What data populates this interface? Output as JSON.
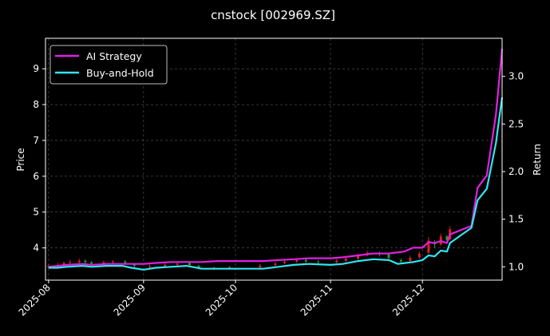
{
  "chart_data": {
    "type": "line",
    "title": "cnstock [002969.SZ]",
    "ylabel": "Price",
    "y2label": "Return",
    "grid": true,
    "legend": "top-left",
    "xlim": [
      "2025-07-31",
      "2025-12-27"
    ],
    "ylim": [
      3.1,
      9.85
    ],
    "y2lim": [
      0.86,
      3.4
    ],
    "x_ticks": [
      "2025-08",
      "2025-09",
      "2025-10",
      "2025-11",
      "2025-12"
    ],
    "y_ticks": [
      4,
      5,
      6,
      7,
      8,
      9
    ],
    "y2_ticks": [
      "1.0",
      "1.5",
      "2.0",
      "2.5",
      "3.0"
    ],
    "colors": {
      "background": "#000000",
      "ai_strategy": "#e020e0",
      "buy_and_hold": "#30e6f0",
      "candle_up": "#e02020",
      "candle_down": "#20a020",
      "grid": "#5a5a5a"
    },
    "series": [
      {
        "name": "AI Strategy",
        "axis": "return",
        "points": [
          [
            "2025-08-01",
            1.0
          ],
          [
            "2025-08-04",
            1.01
          ],
          [
            "2025-08-07",
            1.02
          ],
          [
            "2025-08-12",
            1.03
          ],
          [
            "2025-08-15",
            1.02
          ],
          [
            "2025-08-20",
            1.03
          ],
          [
            "2025-08-25",
            1.03
          ],
          [
            "2025-08-28",
            1.03
          ],
          [
            "2025-09-01",
            1.03
          ],
          [
            "2025-09-05",
            1.04
          ],
          [
            "2025-09-10",
            1.05
          ],
          [
            "2025-09-15",
            1.05
          ],
          [
            "2025-09-20",
            1.05
          ],
          [
            "2025-09-25",
            1.06
          ],
          [
            "2025-10-01",
            1.06
          ],
          [
            "2025-10-10",
            1.06
          ],
          [
            "2025-10-15",
            1.07
          ],
          [
            "2025-10-20",
            1.08
          ],
          [
            "2025-10-25",
            1.09
          ],
          [
            "2025-11-01",
            1.09
          ],
          [
            "2025-11-05",
            1.1
          ],
          [
            "2025-11-10",
            1.12
          ],
          [
            "2025-11-15",
            1.14
          ],
          [
            "2025-11-20",
            1.14
          ],
          [
            "2025-11-25",
            1.16
          ],
          [
            "2025-11-28",
            1.2
          ],
          [
            "2025-12-01",
            1.2
          ],
          [
            "2025-12-03",
            1.26
          ],
          [
            "2025-12-05",
            1.25
          ],
          [
            "2025-12-07",
            1.27
          ],
          [
            "2025-12-09",
            1.25
          ],
          [
            "2025-12-10",
            1.34
          ],
          [
            "2025-12-17",
            1.43
          ],
          [
            "2025-12-19",
            1.83
          ],
          [
            "2025-12-22",
            1.96
          ],
          [
            "2025-12-25",
            2.6
          ],
          [
            "2025-12-26",
            2.95
          ],
          [
            "2025-12-27",
            3.29
          ]
        ]
      },
      {
        "name": "Buy-and-Hold",
        "axis": "return",
        "points": [
          [
            "2025-08-01",
            0.99
          ],
          [
            "2025-08-04",
            0.99
          ],
          [
            "2025-08-07",
            1.0
          ],
          [
            "2025-08-12",
            1.01
          ],
          [
            "2025-08-15",
            1.0
          ],
          [
            "2025-08-20",
            1.01
          ],
          [
            "2025-08-25",
            1.01
          ],
          [
            "2025-08-28",
            0.99
          ],
          [
            "2025-09-01",
            0.97
          ],
          [
            "2025-09-05",
            0.99
          ],
          [
            "2025-09-10",
            1.0
          ],
          [
            "2025-09-15",
            1.01
          ],
          [
            "2025-09-20",
            0.98
          ],
          [
            "2025-09-25",
            0.98
          ],
          [
            "2025-10-01",
            0.98
          ],
          [
            "2025-10-10",
            0.98
          ],
          [
            "2025-10-15",
            1.0
          ],
          [
            "2025-10-20",
            1.02
          ],
          [
            "2025-10-25",
            1.03
          ],
          [
            "2025-11-01",
            1.02
          ],
          [
            "2025-11-05",
            1.03
          ],
          [
            "2025-11-10",
            1.06
          ],
          [
            "2025-11-15",
            1.08
          ],
          [
            "2025-11-20",
            1.07
          ],
          [
            "2025-11-23",
            1.03
          ],
          [
            "2025-11-28",
            1.05
          ],
          [
            "2025-12-01",
            1.07
          ],
          [
            "2025-12-03",
            1.12
          ],
          [
            "2025-12-05",
            1.11
          ],
          [
            "2025-12-07",
            1.17
          ],
          [
            "2025-12-09",
            1.16
          ],
          [
            "2025-12-10",
            1.25
          ],
          [
            "2025-12-17",
            1.41
          ],
          [
            "2025-12-19",
            1.7
          ],
          [
            "2025-12-22",
            1.82
          ],
          [
            "2025-12-25",
            2.3
          ],
          [
            "2025-12-26",
            2.55
          ],
          [
            "2025-12-27",
            2.78
          ]
        ]
      }
    ],
    "candles": [
      {
        "date": "2025-08-01",
        "open": 3.46,
        "close": 3.5,
        "low": 3.43,
        "high": 3.55
      },
      {
        "date": "2025-08-04",
        "open": 3.48,
        "close": 3.52,
        "low": 3.45,
        "high": 3.58
      },
      {
        "date": "2025-08-06",
        "open": 3.5,
        "close": 3.58,
        "low": 3.47,
        "high": 3.62
      },
      {
        "date": "2025-08-08",
        "open": 3.58,
        "close": 3.6,
        "low": 3.53,
        "high": 3.66
      },
      {
        "date": "2025-08-11",
        "open": 3.6,
        "close": 3.64,
        "low": 3.56,
        "high": 3.7
      },
      {
        "date": "2025-08-13",
        "open": 3.64,
        "close": 3.6,
        "low": 3.55,
        "high": 3.68
      },
      {
        "date": "2025-08-15",
        "open": 3.6,
        "close": 3.56,
        "low": 3.52,
        "high": 3.63
      },
      {
        "date": "2025-08-19",
        "open": 3.56,
        "close": 3.6,
        "low": 3.53,
        "high": 3.64
      },
      {
        "date": "2025-08-22",
        "open": 3.6,
        "close": 3.62,
        "low": 3.56,
        "high": 3.66
      },
      {
        "date": "2025-08-26",
        "open": 3.62,
        "close": 3.58,
        "low": 3.54,
        "high": 3.66
      },
      {
        "date": "2025-08-29",
        "open": 3.56,
        "close": 3.5,
        "low": 3.45,
        "high": 3.58
      },
      {
        "date": "2025-09-03",
        "open": 3.46,
        "close": 3.48,
        "low": 3.42,
        "high": 3.54
      },
      {
        "date": "2025-09-08",
        "open": 3.48,
        "close": 3.53,
        "low": 3.45,
        "high": 3.58
      },
      {
        "date": "2025-09-12",
        "open": 3.53,
        "close": 3.56,
        "low": 3.5,
        "high": 3.62
      },
      {
        "date": "2025-09-16",
        "open": 3.58,
        "close": 3.52,
        "low": 3.48,
        "high": 3.62
      },
      {
        "date": "2025-09-19",
        "open": 3.5,
        "close": 3.44,
        "low": 3.4,
        "high": 3.53
      },
      {
        "date": "2025-09-24",
        "open": 3.42,
        "close": 3.44,
        "low": 3.39,
        "high": 3.48
      },
      {
        "date": "2025-09-29",
        "open": 3.44,
        "close": 3.46,
        "low": 3.41,
        "high": 3.5
      },
      {
        "date": "2025-10-09",
        "open": 3.46,
        "close": 3.5,
        "low": 3.43,
        "high": 3.55
      },
      {
        "date": "2025-10-14",
        "open": 3.52,
        "close": 3.56,
        "low": 3.49,
        "high": 3.6
      },
      {
        "date": "2025-10-17",
        "open": 3.58,
        "close": 3.62,
        "low": 3.54,
        "high": 3.66
      },
      {
        "date": "2025-10-21",
        "open": 3.62,
        "close": 3.66,
        "low": 3.58,
        "high": 3.7
      },
      {
        "date": "2025-10-24",
        "open": 3.66,
        "close": 3.62,
        "low": 3.58,
        "high": 3.7
      },
      {
        "date": "2025-10-28",
        "open": 3.62,
        "close": 3.6,
        "low": 3.56,
        "high": 3.66
      },
      {
        "date": "2025-11-03",
        "open": 3.6,
        "close": 3.64,
        "low": 3.57,
        "high": 3.69
      },
      {
        "date": "2025-11-06",
        "open": 3.64,
        "close": 3.7,
        "low": 3.6,
        "high": 3.75
      },
      {
        "date": "2025-11-10",
        "open": 3.7,
        "close": 3.78,
        "low": 3.66,
        "high": 3.84
      },
      {
        "date": "2025-11-13",
        "open": 3.8,
        "close": 3.86,
        "low": 3.76,
        "high": 3.92
      },
      {
        "date": "2025-11-17",
        "open": 3.86,
        "close": 3.82,
        "low": 3.76,
        "high": 3.9
      },
      {
        "date": "2025-11-20",
        "open": 3.82,
        "close": 3.72,
        "low": 3.66,
        "high": 3.86
      },
      {
        "date": "2025-11-24",
        "open": 3.66,
        "close": 3.62,
        "low": 3.57,
        "high": 3.7
      },
      {
        "date": "2025-11-27",
        "open": 3.64,
        "close": 3.72,
        "low": 3.6,
        "high": 3.78
      },
      {
        "date": "2025-11-30",
        "open": 3.74,
        "close": 3.84,
        "low": 3.7,
        "high": 3.9
      },
      {
        "date": "2025-12-03",
        "open": 3.86,
        "close": 4.2,
        "low": 3.84,
        "high": 4.3
      },
      {
        "date": "2025-12-05",
        "open": 4.16,
        "close": 4.1,
        "low": 4.0,
        "high": 4.22
      },
      {
        "date": "2025-12-07",
        "open": 4.1,
        "close": 4.32,
        "low": 4.06,
        "high": 4.4
      },
      {
        "date": "2025-12-09",
        "open": 4.32,
        "close": 4.22,
        "low": 4.16,
        "high": 4.36
      },
      {
        "date": "2025-12-10",
        "open": 4.24,
        "close": 4.52,
        "low": 4.2,
        "high": 4.6
      }
    ]
  }
}
